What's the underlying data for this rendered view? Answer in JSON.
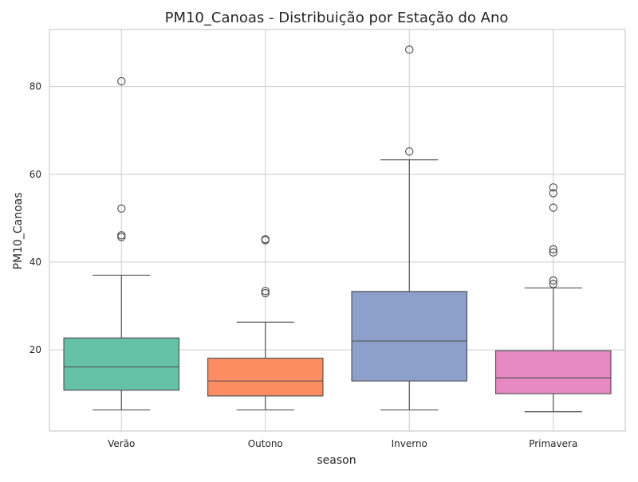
{
  "chart_data": {
    "type": "box",
    "title": "PM10_Canoas - Distribuição por Estação do Ano",
    "xlabel": "season",
    "ylabel": "PM10_Canoas",
    "ylim": [
      1.5,
      93
    ],
    "yticks": [
      20,
      40,
      60,
      80
    ],
    "grid": true,
    "categories": [
      "Verão",
      "Outono",
      "Inverno",
      "Primavera"
    ],
    "boxes": [
      {
        "category": "Verão",
        "color": "#66c2a5",
        "whisker_low": 6.3,
        "q1": 10.8,
        "median": 16.1,
        "q3": 22.7,
        "whisker_high": 37.0,
        "outliers": [
          81.2,
          52.2,
          46.1,
          45.7
        ]
      },
      {
        "category": "Outono",
        "color": "#fc8d62",
        "whisker_low": 6.3,
        "q1": 9.5,
        "median": 12.9,
        "q3": 18.1,
        "whisker_high": 26.3,
        "outliers": [
          45.2,
          45.0,
          33.4,
          32.9
        ]
      },
      {
        "category": "Inverno",
        "color": "#8da0cb",
        "whisker_low": 6.3,
        "q1": 12.9,
        "median": 22.0,
        "q3": 33.3,
        "whisker_high": 63.3,
        "outliers": [
          88.4,
          65.2
        ]
      },
      {
        "category": "Primavera",
        "color": "#e78ac3",
        "whisker_low": 5.9,
        "q1": 10.0,
        "median": 13.6,
        "q3": 19.8,
        "whisker_high": 34.1,
        "outliers": [
          57.0,
          55.7,
          52.4,
          42.9,
          42.2,
          35.8,
          35.0
        ]
      }
    ]
  }
}
